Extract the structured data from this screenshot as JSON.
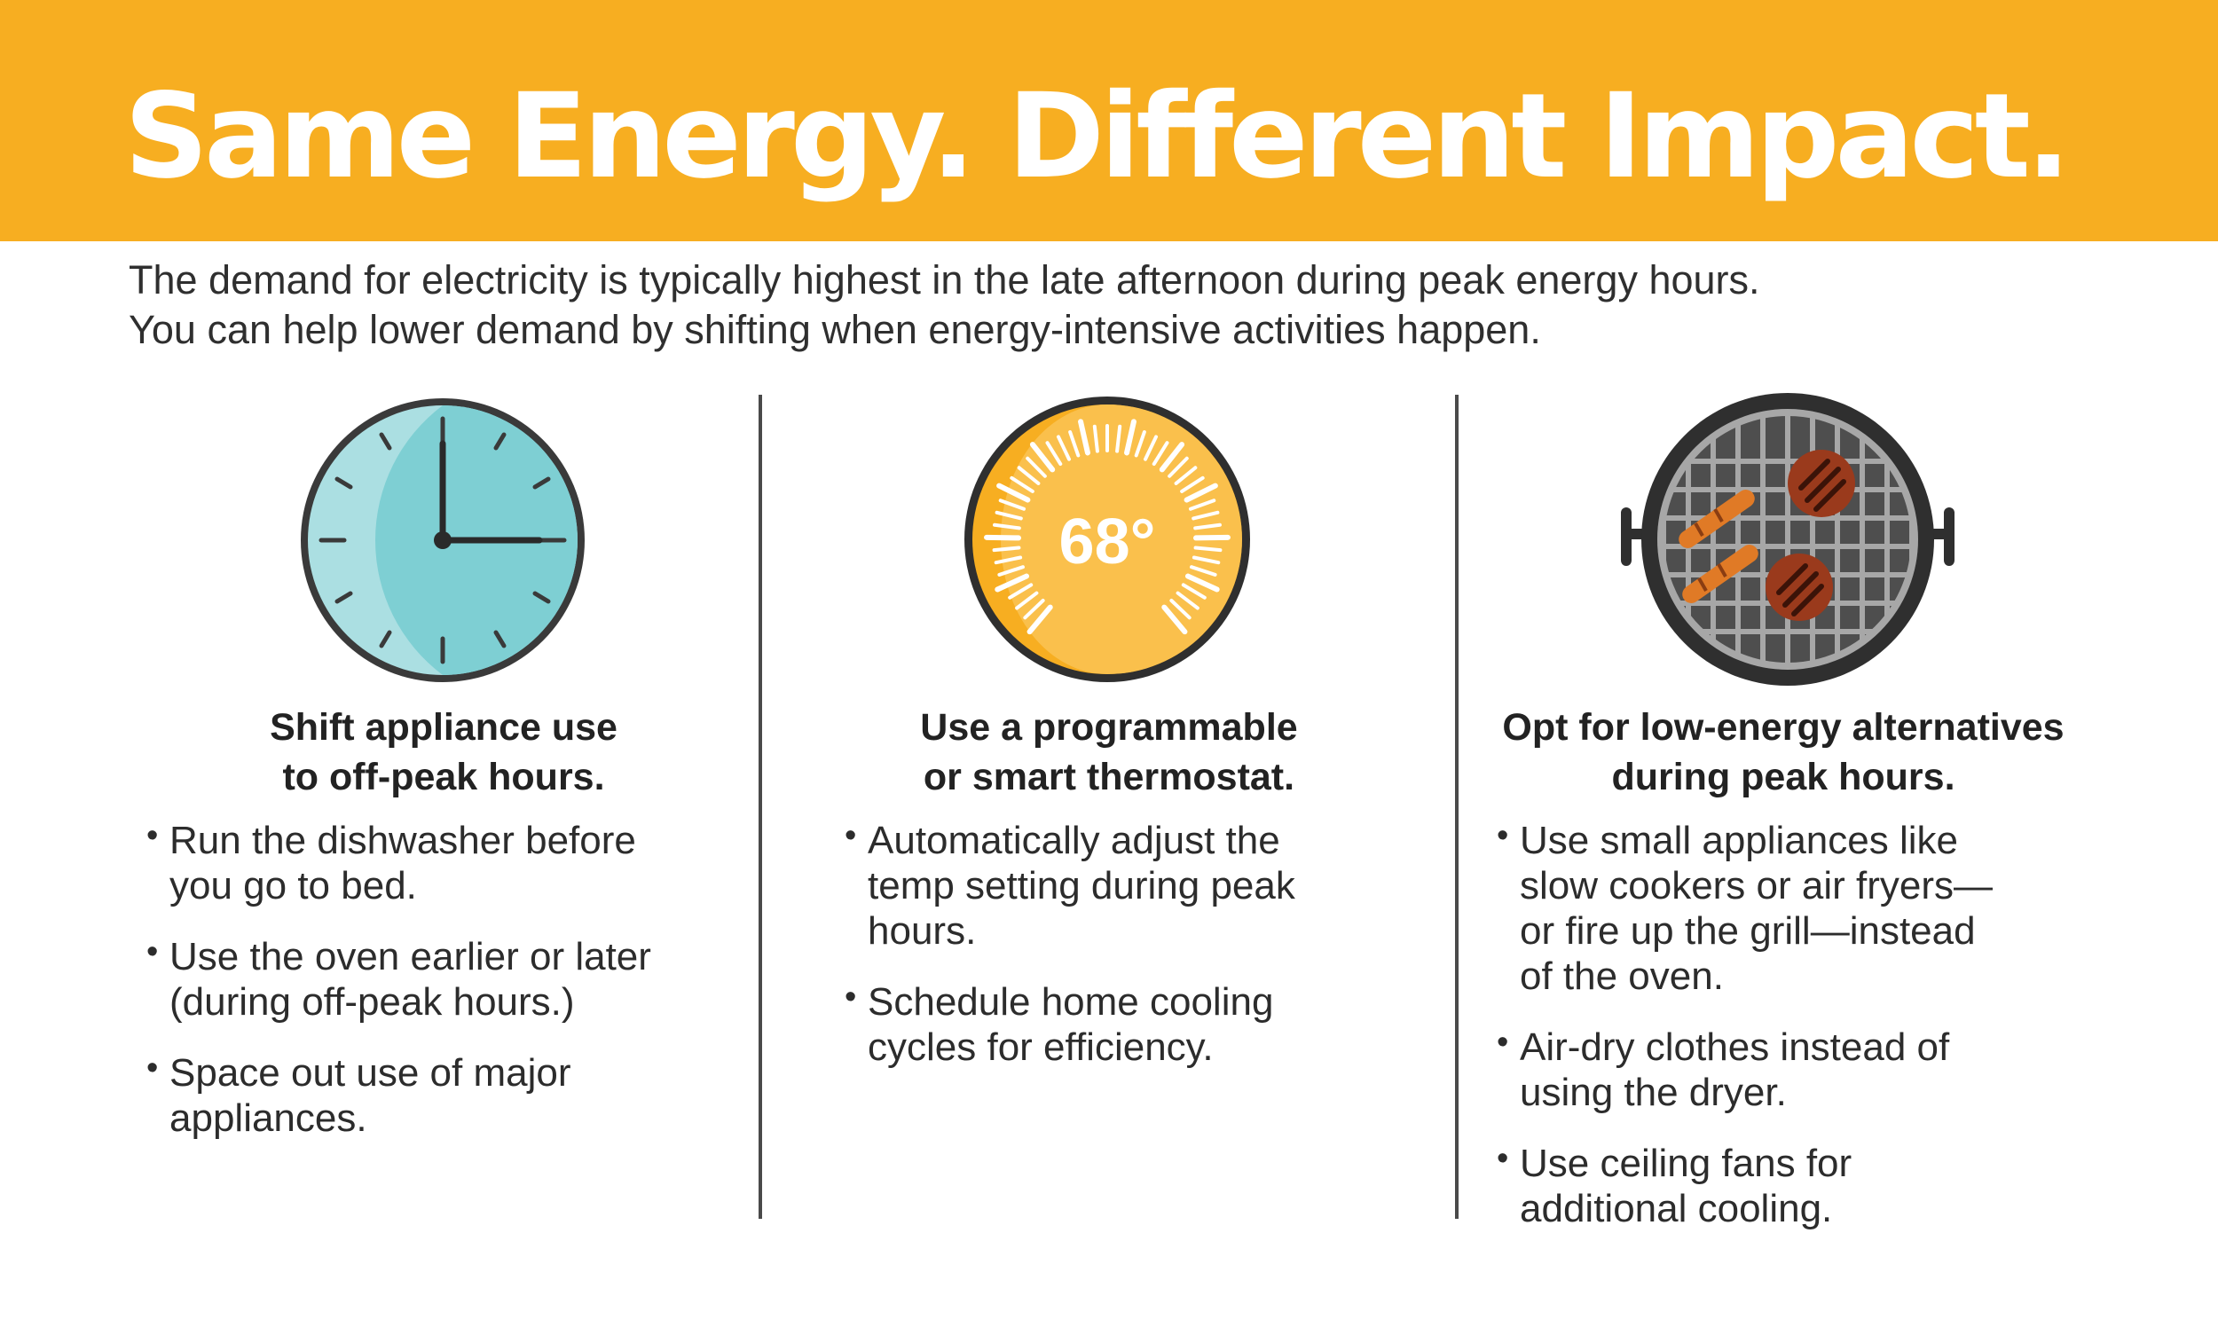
{
  "title": "Same Energy. Different Impact.",
  "intro": [
    "The demand for electricity is typically highest in the late afternoon during peak energy hours.",
    "You can help lower demand by shifting when energy-intensive activities happen."
  ],
  "columns": [
    {
      "icon": "clock-icon",
      "heading": [
        "Shift appliance use",
        "to off-peak hours."
      ],
      "bullets": [
        "Run the dishwasher before\nyou go to bed.",
        "Use the oven earlier or later\n(during off-peak hours.)",
        "Space out use of major\nappliances."
      ]
    },
    {
      "icon": "thermostat-icon",
      "thermostat_reading": "68°",
      "heading": [
        "Use a programmable",
        "or smart thermostat."
      ],
      "bullets": [
        "Automatically adjust the\ntemp setting during peak\nhours.",
        "Schedule home cooling\ncycles for efficiency."
      ]
    },
    {
      "icon": "grill-icon",
      "heading": [
        "Opt for low-energy alternatives",
        "during peak hours."
      ],
      "bullets": [
        "Use small appliances like\nslow cookers or air fryers—\nor fire up the grill—instead\nof the oven.",
        "Air-dry clothes instead of\nusing the dryer.",
        "Use ceiling fans for\nadditional cooling."
      ]
    }
  ],
  "colors": {
    "banner": "#f7ae21",
    "clock_face": "#7ecfd3",
    "thermostat_face": "#f7ae21",
    "grill_body": "#3a3a3a",
    "divider": "#4a4a4a"
  }
}
